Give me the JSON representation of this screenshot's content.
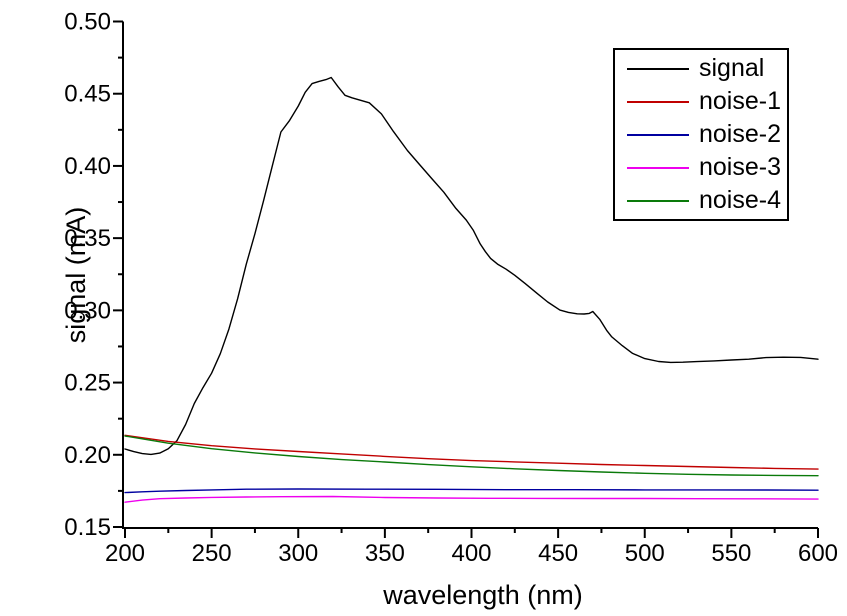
{
  "figure": {
    "background": "#ffffff",
    "axis_color": "#000000"
  },
  "chart_data": {
    "type": "line",
    "title": "",
    "xlabel": "wavelength (nm)",
    "ylabel": "signal (mA)",
    "xlim": [
      200,
      600
    ],
    "ylim": [
      0.15,
      0.5
    ],
    "x_major_ticks": [
      200,
      250,
      300,
      350,
      400,
      450,
      500,
      550,
      600
    ],
    "x_minor_ticks": [
      225,
      275,
      325,
      375,
      425,
      475,
      525,
      575
    ],
    "y_major_ticks": [
      0.15,
      0.2,
      0.25,
      0.3,
      0.35,
      0.4,
      0.45,
      0.5
    ],
    "y_minor_ticks": [
      0.175,
      0.225,
      0.275,
      0.325,
      0.375,
      0.425,
      0.475
    ],
    "grid": false,
    "legend_position": "top-right",
    "series": [
      {
        "name": "signal",
        "color": "#000000",
        "x": [
          200,
          205,
          210,
          215,
          220,
          225,
          230,
          235,
          240,
          245,
          250,
          255,
          260,
          265,
          270,
          275,
          280,
          285,
          290,
          295,
          300,
          304,
          308,
          312,
          316,
          319,
          323,
          327,
          331,
          335,
          341,
          348,
          355,
          363,
          370,
          377,
          384,
          391,
          397,
          401,
          405,
          408,
          411,
          415,
          420,
          425,
          431,
          438,
          444,
          451,
          456,
          461,
          465,
          468,
          470,
          474,
          478,
          481,
          487,
          493,
          500,
          508,
          515,
          522,
          530,
          540,
          550,
          560,
          570,
          580,
          590,
          600
        ],
        "y": [
          0.204,
          0.2022,
          0.2008,
          0.2003,
          0.2012,
          0.2042,
          0.2098,
          0.221,
          0.2355,
          0.2465,
          0.2565,
          0.27,
          0.287,
          0.308,
          0.332,
          0.353,
          0.376,
          0.4,
          0.4235,
          0.4315,
          0.4415,
          0.451,
          0.457,
          0.4585,
          0.4598,
          0.4612,
          0.4548,
          0.4489,
          0.4472,
          0.4458,
          0.4437,
          0.436,
          0.4238,
          0.4107,
          0.401,
          0.3913,
          0.3818,
          0.3706,
          0.3625,
          0.3556,
          0.346,
          0.3406,
          0.336,
          0.332,
          0.3285,
          0.3243,
          0.3185,
          0.3116,
          0.3058,
          0.3002,
          0.2986,
          0.2976,
          0.2975,
          0.2979,
          0.2992,
          0.2938,
          0.2862,
          0.2816,
          0.2756,
          0.2702,
          0.2666,
          0.2646,
          0.264,
          0.2641,
          0.2645,
          0.265,
          0.2656,
          0.2662,
          0.2673,
          0.2676,
          0.2674,
          0.2662
        ]
      },
      {
        "name": "noise-1",
        "color": "#c00000",
        "x": [
          200,
          225,
          250,
          275,
          300,
          325,
          350,
          375,
          400,
          425,
          450,
          475,
          500,
          525,
          550,
          575,
          600
        ],
        "y": [
          0.2135,
          0.2093,
          0.2063,
          0.2041,
          0.2023,
          0.2006,
          0.1989,
          0.1973,
          0.196,
          0.1951,
          0.1942,
          0.1933,
          0.1926,
          0.1919,
          0.1912,
          0.1906,
          0.1901
        ]
      },
      {
        "name": "noise-2",
        "color": "#0000a0",
        "x": [
          200,
          210,
          220,
          235,
          250,
          270,
          300,
          340,
          380,
          420,
          460,
          500,
          540,
          570,
          600
        ],
        "y": [
          0.1738,
          0.1744,
          0.1748,
          0.1753,
          0.1757,
          0.1762,
          0.1763,
          0.1762,
          0.1761,
          0.1758,
          0.1758,
          0.1757,
          0.1757,
          0.1756,
          0.1755
        ]
      },
      {
        "name": "noise-3",
        "color": "#ee00ee",
        "x": [
          200,
          210,
          220,
          235,
          250,
          270,
          290,
          320,
          350,
          380,
          410,
          440,
          470,
          500,
          530,
          560,
          600
        ],
        "y": [
          0.1672,
          0.1686,
          0.1696,
          0.1701,
          0.1705,
          0.1708,
          0.171,
          0.1711,
          0.1704,
          0.1701,
          0.1699,
          0.1698,
          0.1697,
          0.1697,
          0.1696,
          0.1695,
          0.1693
        ]
      },
      {
        "name": "noise-4",
        "color": "#0a7a0a",
        "x": [
          200,
          225,
          250,
          275,
          300,
          325,
          350,
          375,
          400,
          425,
          450,
          475,
          500,
          525,
          550,
          575,
          600
        ],
        "y": [
          0.213,
          0.208,
          0.2042,
          0.2013,
          0.1988,
          0.1967,
          0.195,
          0.1932,
          0.1917,
          0.1903,
          0.1891,
          0.1881,
          0.1872,
          0.1865,
          0.186,
          0.1857,
          0.1855
        ]
      }
    ]
  }
}
